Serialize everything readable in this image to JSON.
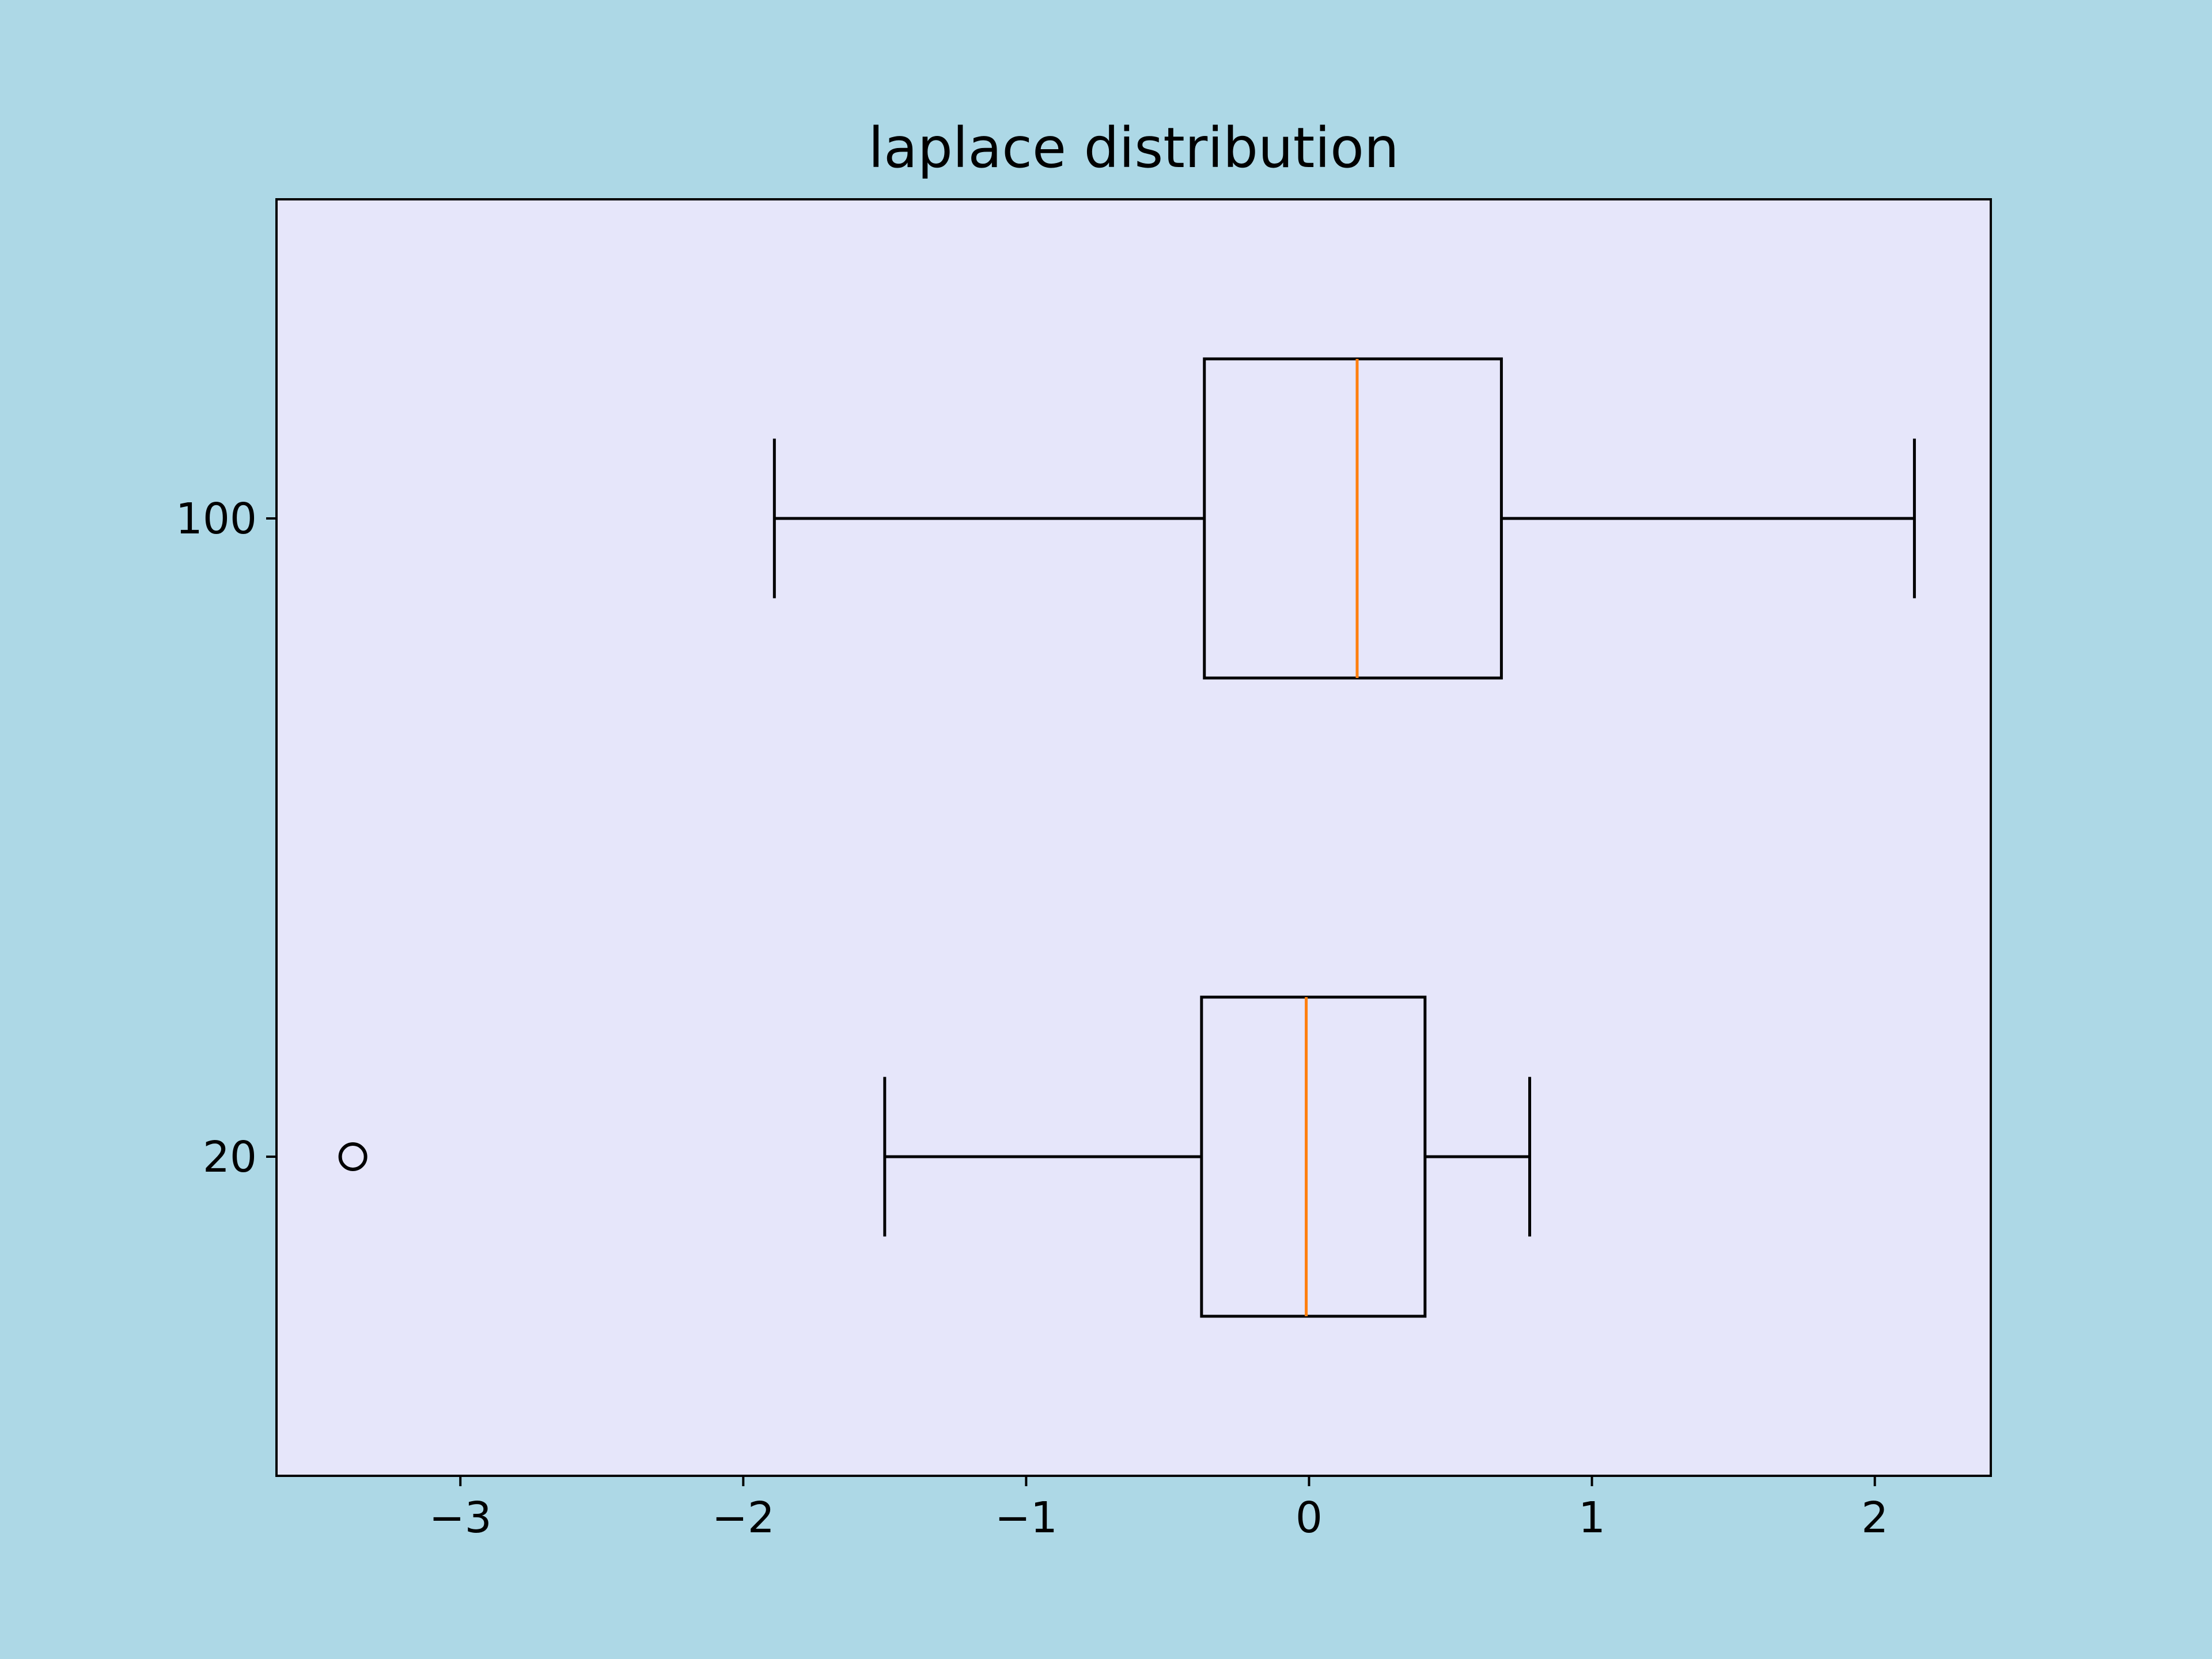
{
  "chart_data": {
    "type": "boxplot",
    "orientation": "horizontal",
    "title": "laplace distribution",
    "xlabel": "",
    "ylabel": "",
    "xlim": [
      -3.65,
      2.41
    ],
    "xticks": [
      -3,
      -2,
      -1,
      0,
      1,
      2
    ],
    "xtick_labels": [
      "−3",
      "−2",
      "−1",
      "0",
      "1",
      "2"
    ],
    "categories": [
      "20",
      "100"
    ],
    "series": [
      {
        "label": "20",
        "whisker_low": -1.5,
        "q1": -0.38,
        "median": -0.01,
        "q3": 0.41,
        "whisker_high": 0.78,
        "outliers": [
          -3.38
        ]
      },
      {
        "label": "100",
        "whisker_low": -1.89,
        "q1": -0.37,
        "median": 0.17,
        "q3": 0.68,
        "whisker_high": 2.14,
        "outliers": []
      }
    ],
    "grid": false,
    "colors": {
      "figure_background": "#add8e6",
      "axes_background": "#e6e6fa",
      "box": "#000000",
      "median": "#ff7f0e"
    }
  }
}
